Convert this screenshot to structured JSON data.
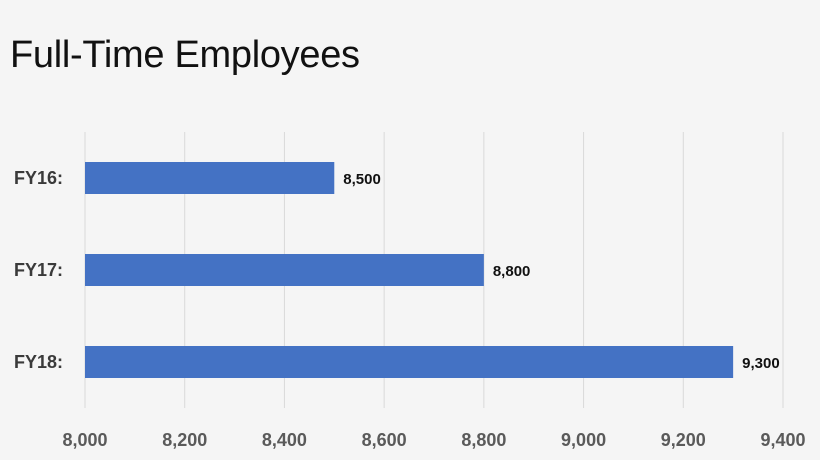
{
  "title": "Full-Time Employees",
  "chart_data": {
    "type": "bar",
    "orientation": "horizontal",
    "title": "Full-Time Employees",
    "categories": [
      "FY16:",
      "FY17:",
      "FY18:"
    ],
    "values": [
      8500,
      8800,
      9300
    ],
    "data_labels": [
      "8,500",
      "8,800",
      "9,300"
    ],
    "xlim": [
      8000,
      9400
    ],
    "x_ticks": [
      8000,
      8200,
      8400,
      8600,
      8800,
      9000,
      9200,
      9400
    ],
    "x_tick_labels": [
      "8,000",
      "8,200",
      "8,400",
      "8,600",
      "8,800",
      "9,000",
      "9,200",
      "9,400"
    ],
    "xlabel": "",
    "ylabel": "",
    "grid": true,
    "legend": "none",
    "bar_color": "#4472c4"
  }
}
